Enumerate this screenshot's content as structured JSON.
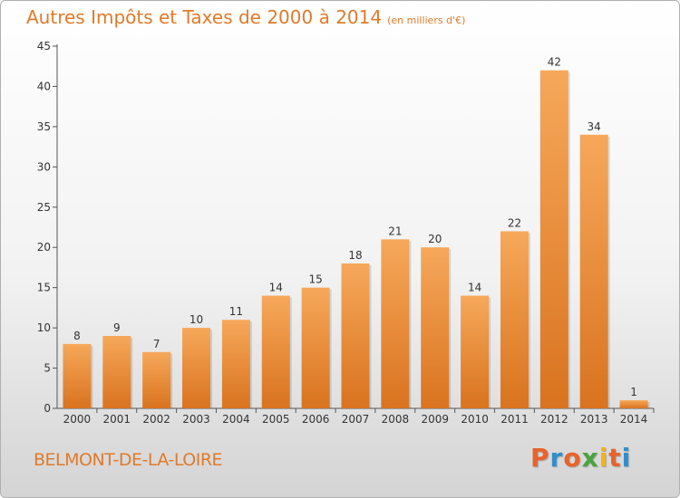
{
  "title": "Autres Impôts et Taxes de 2000 à 2014",
  "unit": "(en milliers d'€)",
  "commune": "BELMONT-DE-LA-LOIRE",
  "logo": [
    "P",
    "r",
    "o",
    "x",
    "i",
    "t",
    "i"
  ],
  "logo_colors": [
    "#e8632b",
    "#2f8fce",
    "#e8632b",
    "#4ba33e",
    "#f2b21b",
    "#e8632b",
    "#2f8fce"
  ],
  "colors": {
    "bar_top": "#f6a85a",
    "bar_bottom": "#d9731f",
    "accent": "#e07a2a"
  },
  "chart_data": {
    "type": "bar",
    "title": "Autres Impôts et Taxes de 2000 à 2014",
    "xlabel": "",
    "ylabel": "",
    "categories": [
      "2000",
      "2001",
      "2002",
      "2003",
      "2004",
      "2005",
      "2006",
      "2007",
      "2008",
      "2009",
      "2010",
      "2011",
      "2012",
      "2013",
      "2014"
    ],
    "values": [
      8,
      9,
      7,
      10,
      11,
      14,
      15,
      18,
      21,
      20,
      14,
      22,
      42,
      34,
      1
    ],
    "ylim": [
      0,
      45
    ],
    "yticks": [
      0,
      5,
      10,
      15,
      20,
      25,
      30,
      35,
      40,
      45
    ],
    "grid": false,
    "legend": "none"
  }
}
